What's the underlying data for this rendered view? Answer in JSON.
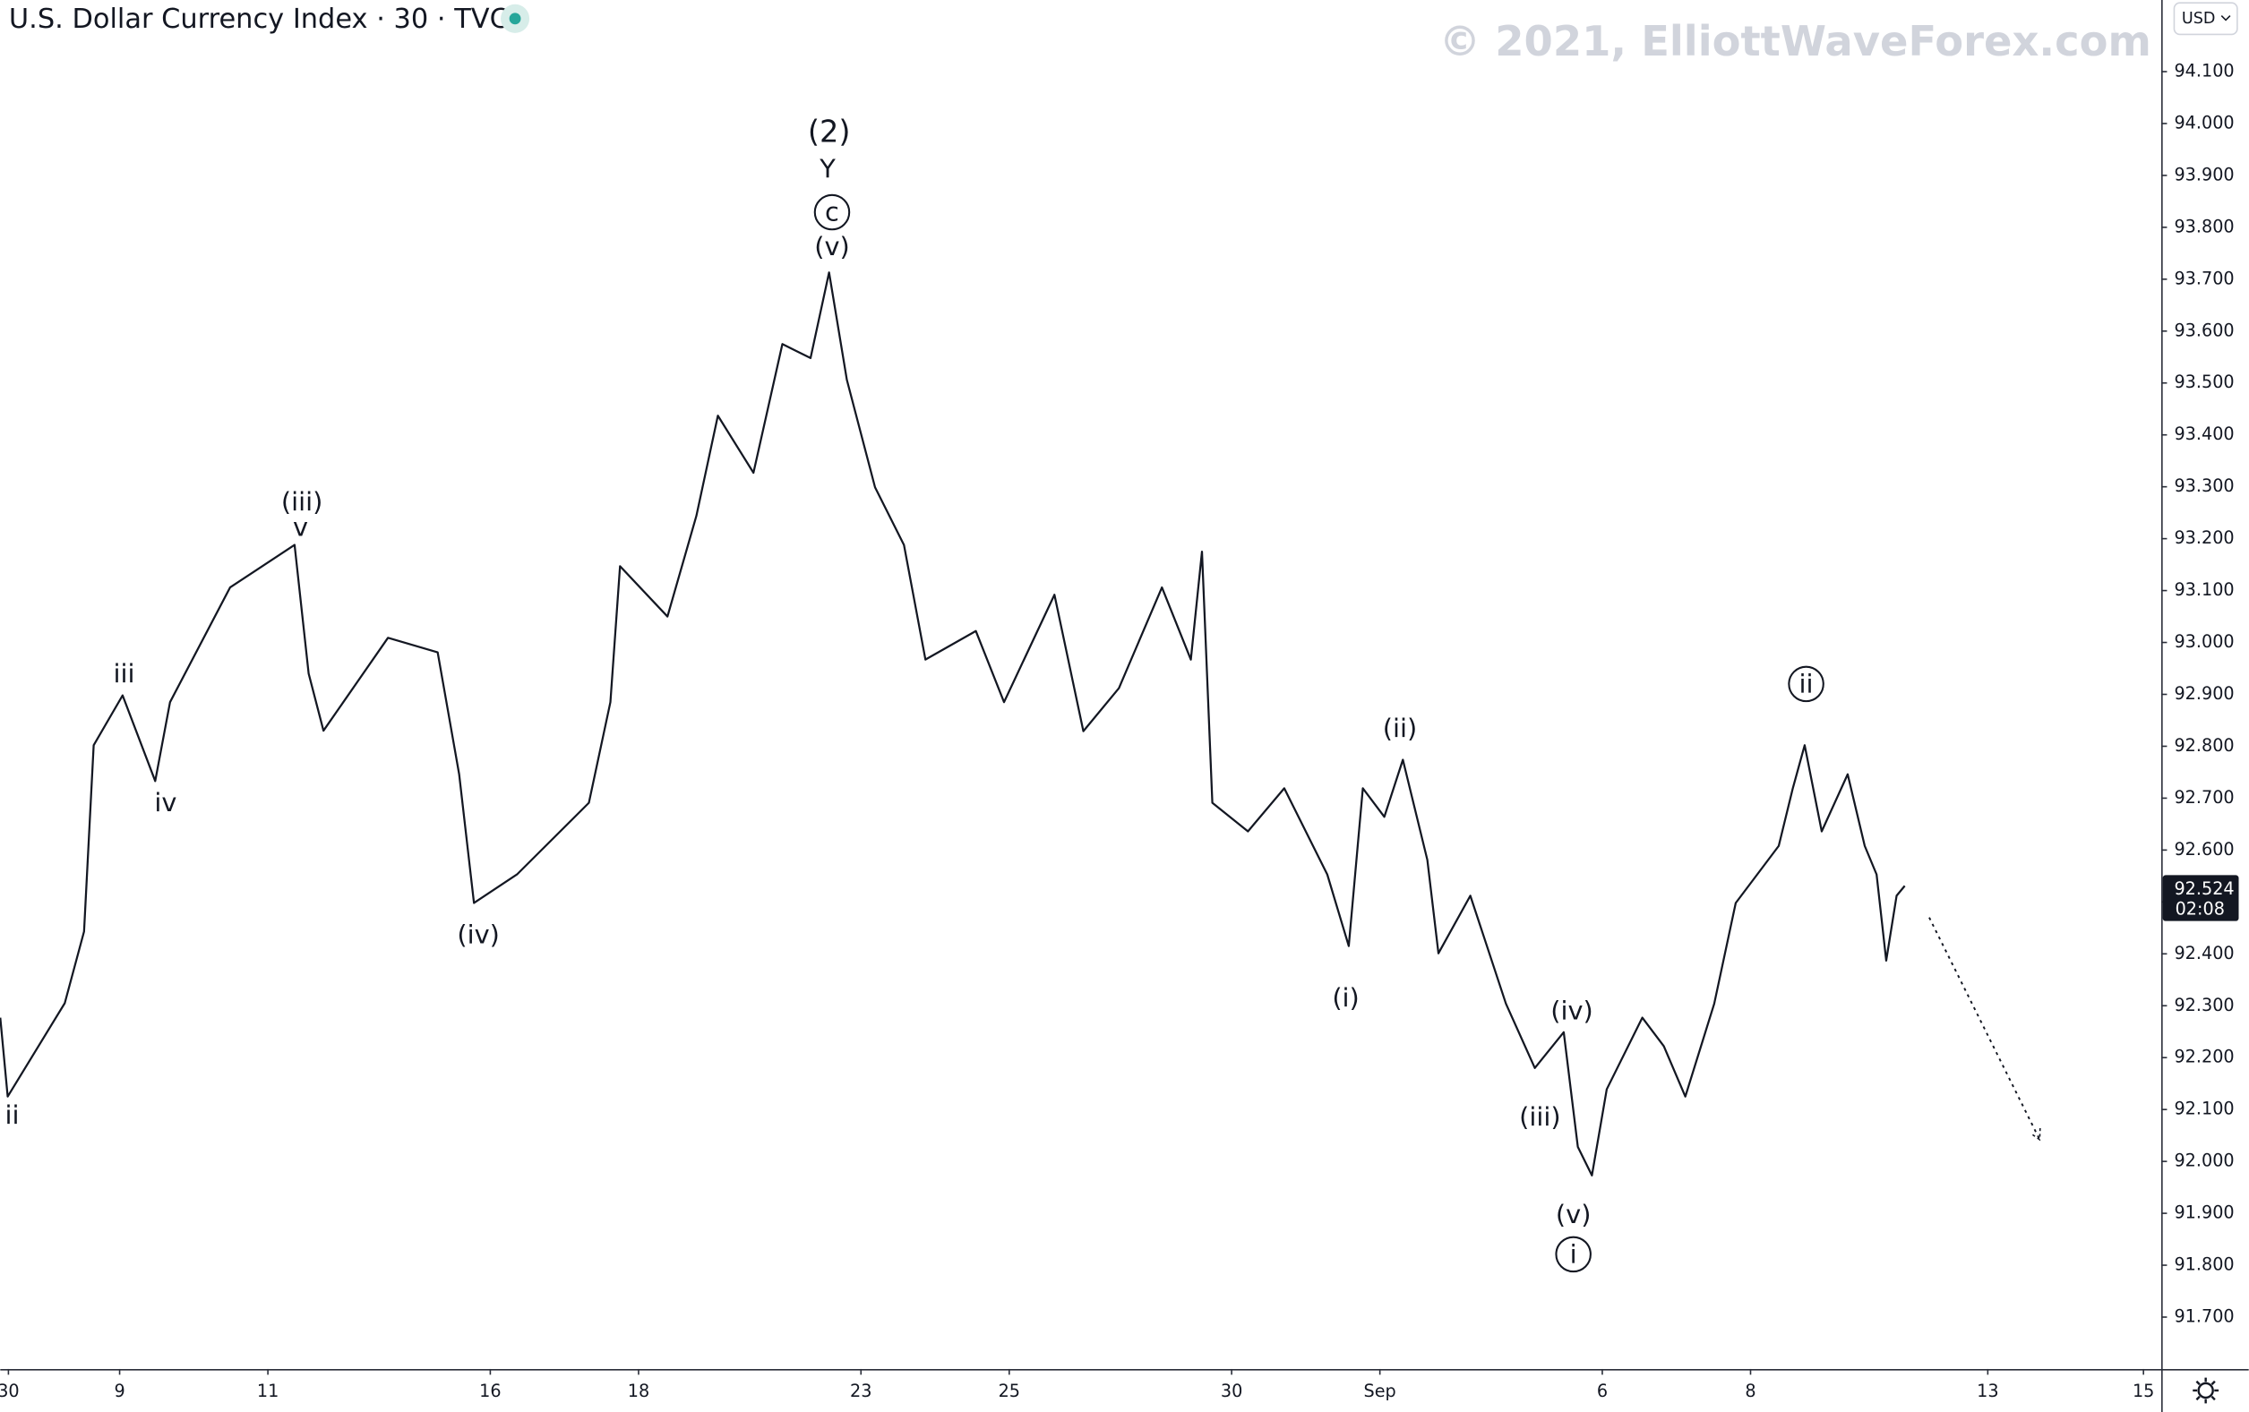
{
  "chart_data": {
    "type": "line",
    "title": "U.S. Dollar Currency Index · 30 · TVC",
    "watermark": "© 2021, ElliottWaveForex.com",
    "currency": "USD",
    "color": "#131722",
    "x": [
      -0.61,
      -0.51,
      0.26,
      0.52,
      0.65,
      1.04,
      1.48,
      1.68,
      2.49,
      3.36,
      3.55,
      3.75,
      4.62,
      5.29,
      5.58,
      5.78,
      6.36,
      7.33,
      7.62,
      7.75,
      8.39,
      8.78,
      9.07,
      9.55,
      9.94,
      10.32,
      10.57,
      10.81,
      11.19,
      11.58,
      11.87,
      12.55,
      12.93,
      13.61,
      14.0,
      14.48,
      15.06,
      15.45,
      15.6,
      15.74,
      16.22,
      16.71,
      17.29,
      17.58,
      17.77,
      18.06,
      18.31,
      18.64,
      18.79,
      19.22,
      19.7,
      20.09,
      20.48,
      20.67,
      20.86,
      21.06,
      21.54,
      21.83,
      22.12,
      22.51,
      22.8,
      23.38,
      23.57,
      23.73,
      23.96,
      24.31,
      24.54,
      24.7,
      24.83,
      24.97,
      25.08
    ],
    "values": [
      92.277,
      92.125,
      92.305,
      92.443,
      92.802,
      92.898,
      92.733,
      92.885,
      93.106,
      93.188,
      92.94,
      92.83,
      93.009,
      92.981,
      92.746,
      92.498,
      92.553,
      92.691,
      92.885,
      93.147,
      93.05,
      93.244,
      93.437,
      93.327,
      93.575,
      93.548,
      93.713,
      93.506,
      93.299,
      93.188,
      92.967,
      93.022,
      92.885,
      93.092,
      92.829,
      92.912,
      93.106,
      92.967,
      93.175,
      92.691,
      92.636,
      92.719,
      92.553,
      92.415,
      92.719,
      92.664,
      92.774,
      92.581,
      92.401,
      92.512,
      92.304,
      92.18,
      92.249,
      92.028,
      91.973,
      92.139,
      92.277,
      92.222,
      92.125,
      92.304,
      92.498,
      92.608,
      92.719,
      92.802,
      92.636,
      92.746,
      92.608,
      92.553,
      92.387,
      92.512,
      92.531
    ],
    "xlim": [
      -0.61,
      28.54
    ],
    "ylim": [
      91.6,
      94.238
    ],
    "xticks": [
      {
        "value": -0.5,
        "label": "30"
      },
      {
        "value": 1,
        "label": "9"
      },
      {
        "value": 3,
        "label": "11"
      },
      {
        "value": 6,
        "label": "16"
      },
      {
        "value": 8,
        "label": "18"
      },
      {
        "value": 11,
        "label": "23"
      },
      {
        "value": 13,
        "label": "25"
      },
      {
        "value": 16,
        "label": "30"
      },
      {
        "value": 18,
        "label": "Sep"
      },
      {
        "value": 21,
        "label": "6"
      },
      {
        "value": 23,
        "label": "8"
      },
      {
        "value": 26.2,
        "label": "13"
      },
      {
        "value": 28.3,
        "label": "15"
      }
    ],
    "yticks": [
      {
        "value": 91.7,
        "label": "91.700"
      },
      {
        "value": 91.8,
        "label": "91.800"
      },
      {
        "value": 91.9,
        "label": "91.900"
      },
      {
        "value": 92.0,
        "label": "92.000"
      },
      {
        "value": 92.1,
        "label": "92.100"
      },
      {
        "value": 92.2,
        "label": "92.200"
      },
      {
        "value": 92.3,
        "label": "92.300"
      },
      {
        "value": 92.4,
        "label": "92.400"
      },
      {
        "value": 92.5,
        "label": "92.500"
      },
      {
        "value": 92.6,
        "label": "92.600"
      },
      {
        "value": 92.7,
        "label": "92.700"
      },
      {
        "value": 92.8,
        "label": "92.800"
      },
      {
        "value": 92.9,
        "label": "92.900"
      },
      {
        "value": 93.0,
        "label": "93.000"
      },
      {
        "value": 93.1,
        "label": "93.100"
      },
      {
        "value": 93.2,
        "label": "93.200"
      },
      {
        "value": 93.3,
        "label": "93.300"
      },
      {
        "value": 93.4,
        "label": "93.400"
      },
      {
        "value": 93.5,
        "label": "93.500"
      },
      {
        "value": 93.6,
        "label": "93.600"
      },
      {
        "value": 93.7,
        "label": "93.700"
      },
      {
        "value": 93.8,
        "label": "93.800"
      },
      {
        "value": 93.9,
        "label": "93.900"
      },
      {
        "value": 94.0,
        "label": "94.000"
      },
      {
        "value": 94.1,
        "label": "94.100"
      }
    ],
    "last_price": {
      "value": 92.524,
      "label": "92.524",
      "countdown": "02:08"
    },
    "projection": {
      "x": [
        25.41,
        26.9
      ],
      "y": [
        92.47,
        92.042
      ]
    },
    "annotations": [
      {
        "text": "ii",
        "x": -0.45,
        "y": 92.089,
        "circled": false
      },
      {
        "text": "iii",
        "x": 1.06,
        "y": 92.94,
        "circled": false
      },
      {
        "text": "iv",
        "x": 1.62,
        "y": 92.691,
        "circled": false
      },
      {
        "text": "(iii)",
        "x": 3.46,
        "y": 93.271,
        "circled": false
      },
      {
        "text": "v",
        "x": 3.44,
        "y": 93.222,
        "circled": false
      },
      {
        "text": "(iv)",
        "x": 5.84,
        "y": 92.437,
        "circled": false
      },
      {
        "text": "(2)",
        "x": 10.57,
        "y": 93.984,
        "circled": false
      },
      {
        "text": "Y",
        "x": 10.55,
        "y": 93.912,
        "circled": false
      },
      {
        "text": "c",
        "x": 10.61,
        "y": 93.829,
        "circled": true
      },
      {
        "text": "(v)",
        "x": 10.61,
        "y": 93.763,
        "circled": false
      },
      {
        "text": "(i)",
        "x": 17.54,
        "y": 92.315,
        "circled": false
      },
      {
        "text": "(ii)",
        "x": 18.27,
        "y": 92.835,
        "circled": false
      },
      {
        "text": "(iv)",
        "x": 20.59,
        "y": 92.29,
        "circled": false
      },
      {
        "text": "(iii)",
        "x": 20.16,
        "y": 92.086,
        "circled": false
      },
      {
        "text": "(v)",
        "x": 20.61,
        "y": 91.898,
        "circled": false
      },
      {
        "text": "i",
        "x": 20.61,
        "y": 91.821,
        "circled": true
      },
      {
        "text": "ii",
        "x": 23.75,
        "y": 92.92,
        "circled": true
      }
    ]
  }
}
